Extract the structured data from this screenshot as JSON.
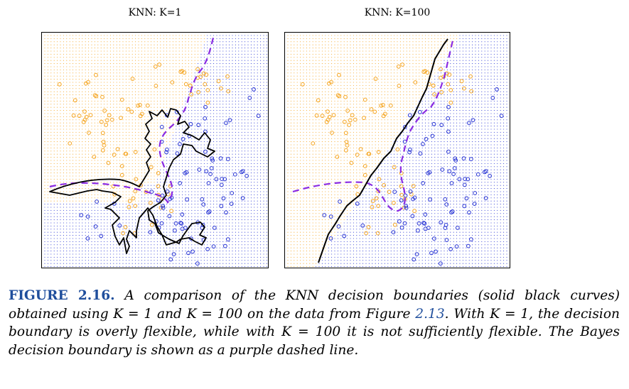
{
  "figure": {
    "label": "FIGURE 2.16.",
    "caption_part1": " A comparison of the KNN decision boundaries (solid black curves) obtained using K = 1 and K = 100 on the data from Figure ",
    "caption_ref": "2.13",
    "caption_part2": ". With K = 1, the decision boundary is overly flexible, while with K = 100 it is not sufficiently flexible. The Bayes decision boundary is shown as a purple dashed line."
  },
  "colors": {
    "orange_class": "#f5a623",
    "blue_class": "#2a36d4",
    "bayes": "#8a2be2",
    "knn": "#000000"
  },
  "chart_data": [
    {
      "type": "scatter",
      "title": "KNN: K=1",
      "k": 1,
      "grid": "dotted background",
      "boundary": "solid black (KNN), purple dashed (Bayes)"
    },
    {
      "type": "scatter",
      "title": "KNN: K=100",
      "k": 100,
      "grid": "dotted background",
      "boundary": "solid black (KNN), purple dashed (Bayes)"
    }
  ]
}
